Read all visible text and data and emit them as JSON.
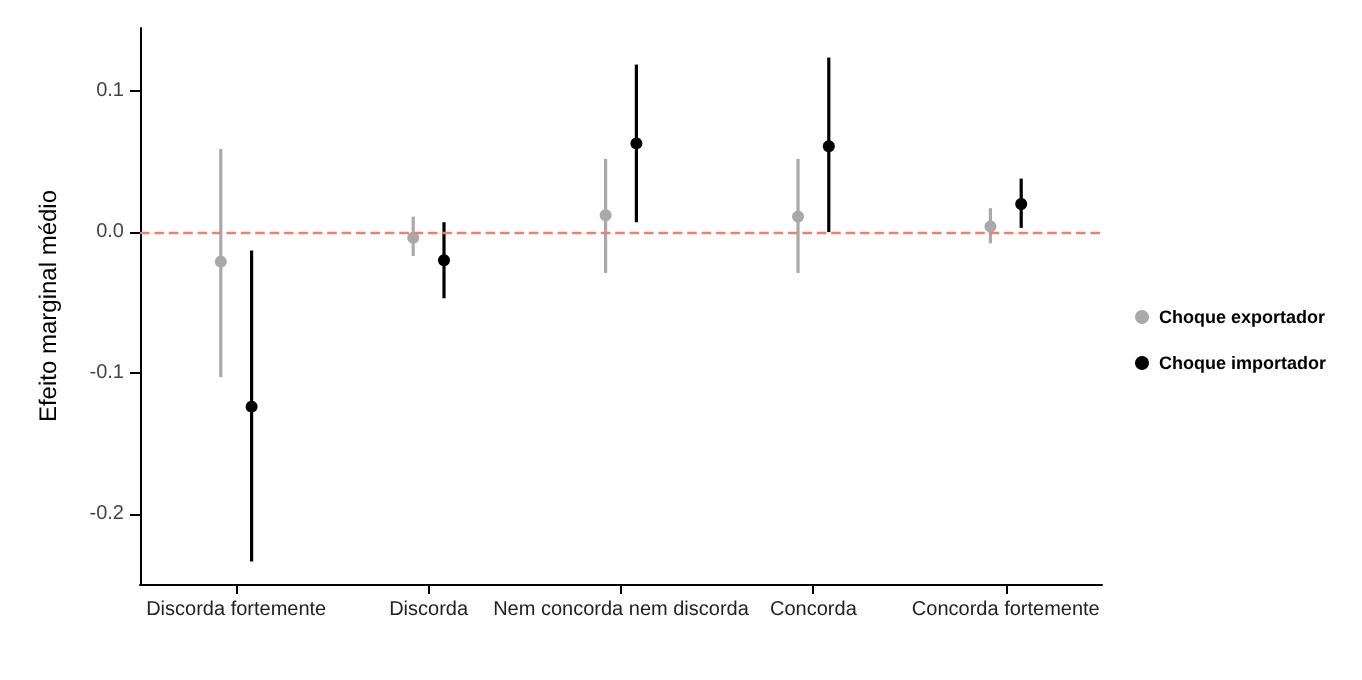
{
  "chart_data": {
    "type": "scatter",
    "ylabel": "Efeito marginal médio",
    "categories": [
      "Discorda fortemente",
      "Discorda",
      "Nem concorda nem discorda",
      "Concorda",
      "Concorda fortemente"
    ],
    "series": [
      {
        "name": "Choque exportador",
        "color": "#a9a9a9",
        "values": [
          -0.021,
          -0.004,
          0.012,
          0.011,
          0.004
        ],
        "errors": [
          [
            -0.103,
            0.059
          ],
          [
            -0.017,
            0.011
          ],
          [
            -0.029,
            0.052
          ],
          [
            -0.029,
            0.052
          ],
          [
            -0.008,
            0.017
          ]
        ]
      },
      {
        "name": "Choque importador",
        "color": "#000000",
        "values": [
          -0.124,
          -0.02,
          0.063,
          0.061,
          0.02
        ],
        "errors": [
          [
            -0.234,
            -0.013
          ],
          [
            -0.047,
            0.007
          ],
          [
            0.007,
            0.119
          ],
          [
            0.0,
            0.124
          ],
          [
            0.003,
            0.038
          ]
        ]
      }
    ],
    "ylim": [
      -0.25,
      0.145
    ],
    "yticks": [
      {
        "value": -0.2,
        "label": "-0.2"
      },
      {
        "value": -0.1,
        "label": "-0.1"
      },
      {
        "value": 0,
        "label": "0.0"
      },
      0.1
    ],
    "ref_lines": [
      {
        "axis": "y",
        "value": 0,
        "color": "#e8836f",
        "line_style": "dashed"
      }
    ],
    "grid": false,
    "legend": "right",
    "marker": "circle"
  }
}
